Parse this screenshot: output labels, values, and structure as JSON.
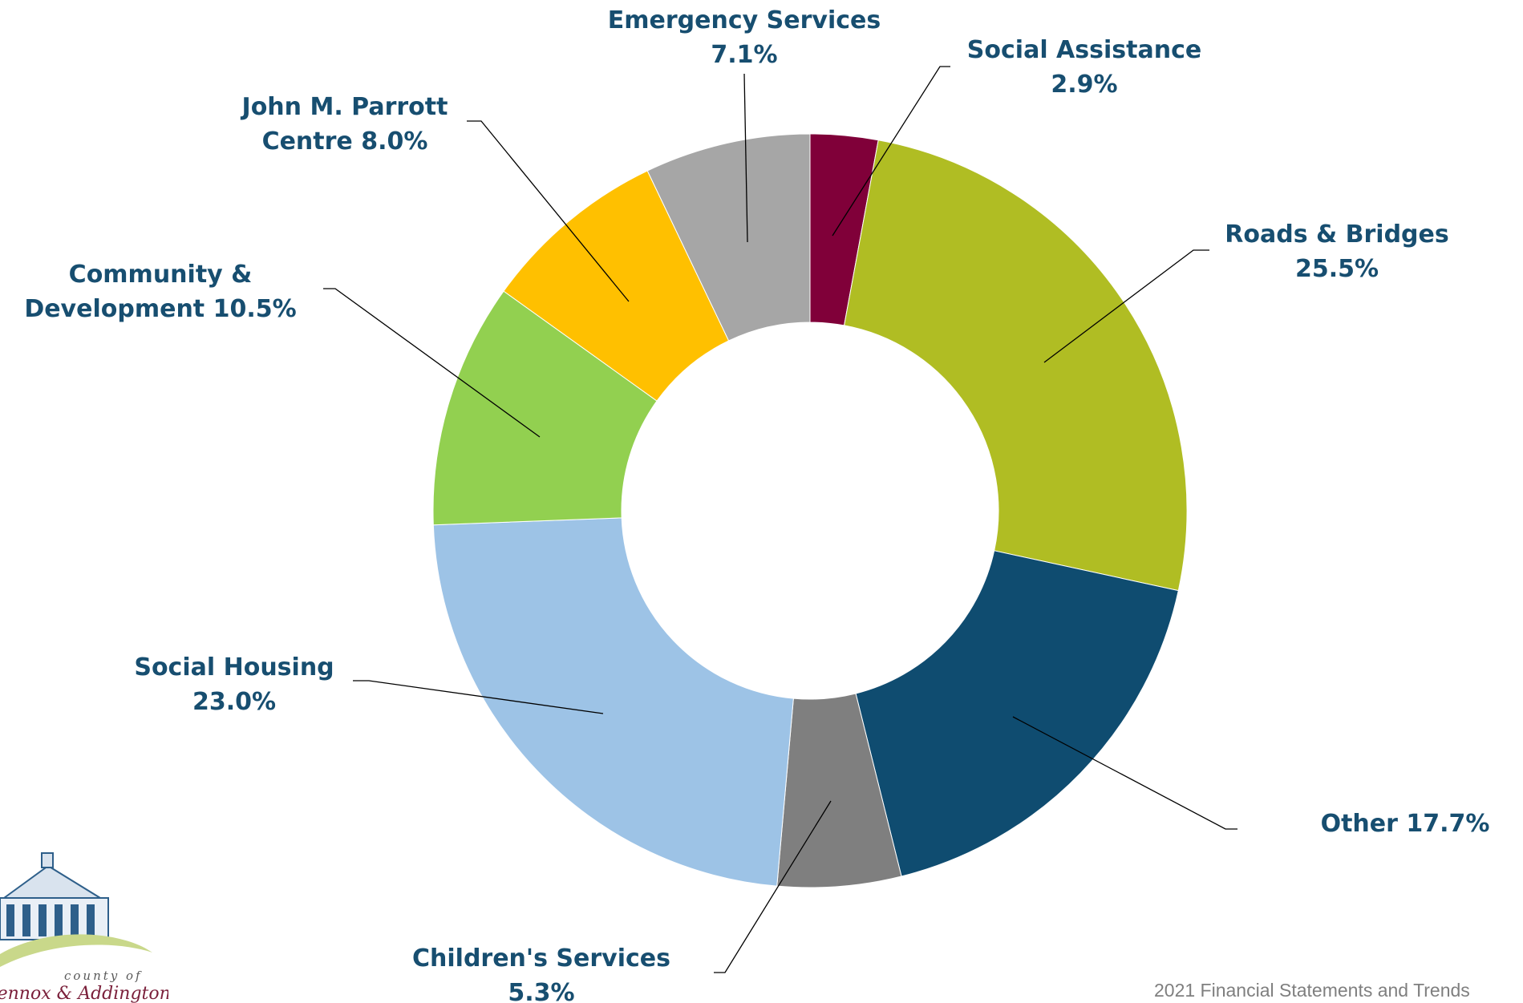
{
  "chart_data": {
    "type": "pie",
    "variant": "donut",
    "start_angle_deg": 0,
    "direction": "clockwise",
    "slices": [
      {
        "label_lines": [
          "Social Assistance",
          "2.9%"
        ],
        "value": 2.9,
        "color": "#800039"
      },
      {
        "label_lines": [
          "Roads & Bridges",
          "25.5%"
        ],
        "value": 25.5,
        "color": "#b0bd23"
      },
      {
        "label_lines": [
          "Other  17.7%"
        ],
        "value": 17.7,
        "color": "#0f4c70"
      },
      {
        "label_lines": [
          "Children's Services",
          "5.3%"
        ],
        "value": 5.3,
        "color": "#7f7f7f"
      },
      {
        "label_lines": [
          "Social Housing",
          "23.0%"
        ],
        "value": 23.0,
        "color": "#9dc3e6"
      },
      {
        "label_lines": [
          "Community &",
          "Development 10.5%"
        ],
        "value": 10.5,
        "color": "#92d050"
      },
      {
        "label_lines": [
          "John M. Parrott",
          "Centre  8.0%"
        ],
        "value": 8.0,
        "color": "#ffc000"
      },
      {
        "label_lines": [
          "Emergency Services",
          "7.1%"
        ],
        "value": 7.1,
        "color": "#a6a6a6"
      }
    ],
    "label_color": "#174e70"
  },
  "footer": "2021 Financial Statements and Trends",
  "logo": {
    "line1": "county of",
    "line2": "Lennox & Addington"
  }
}
